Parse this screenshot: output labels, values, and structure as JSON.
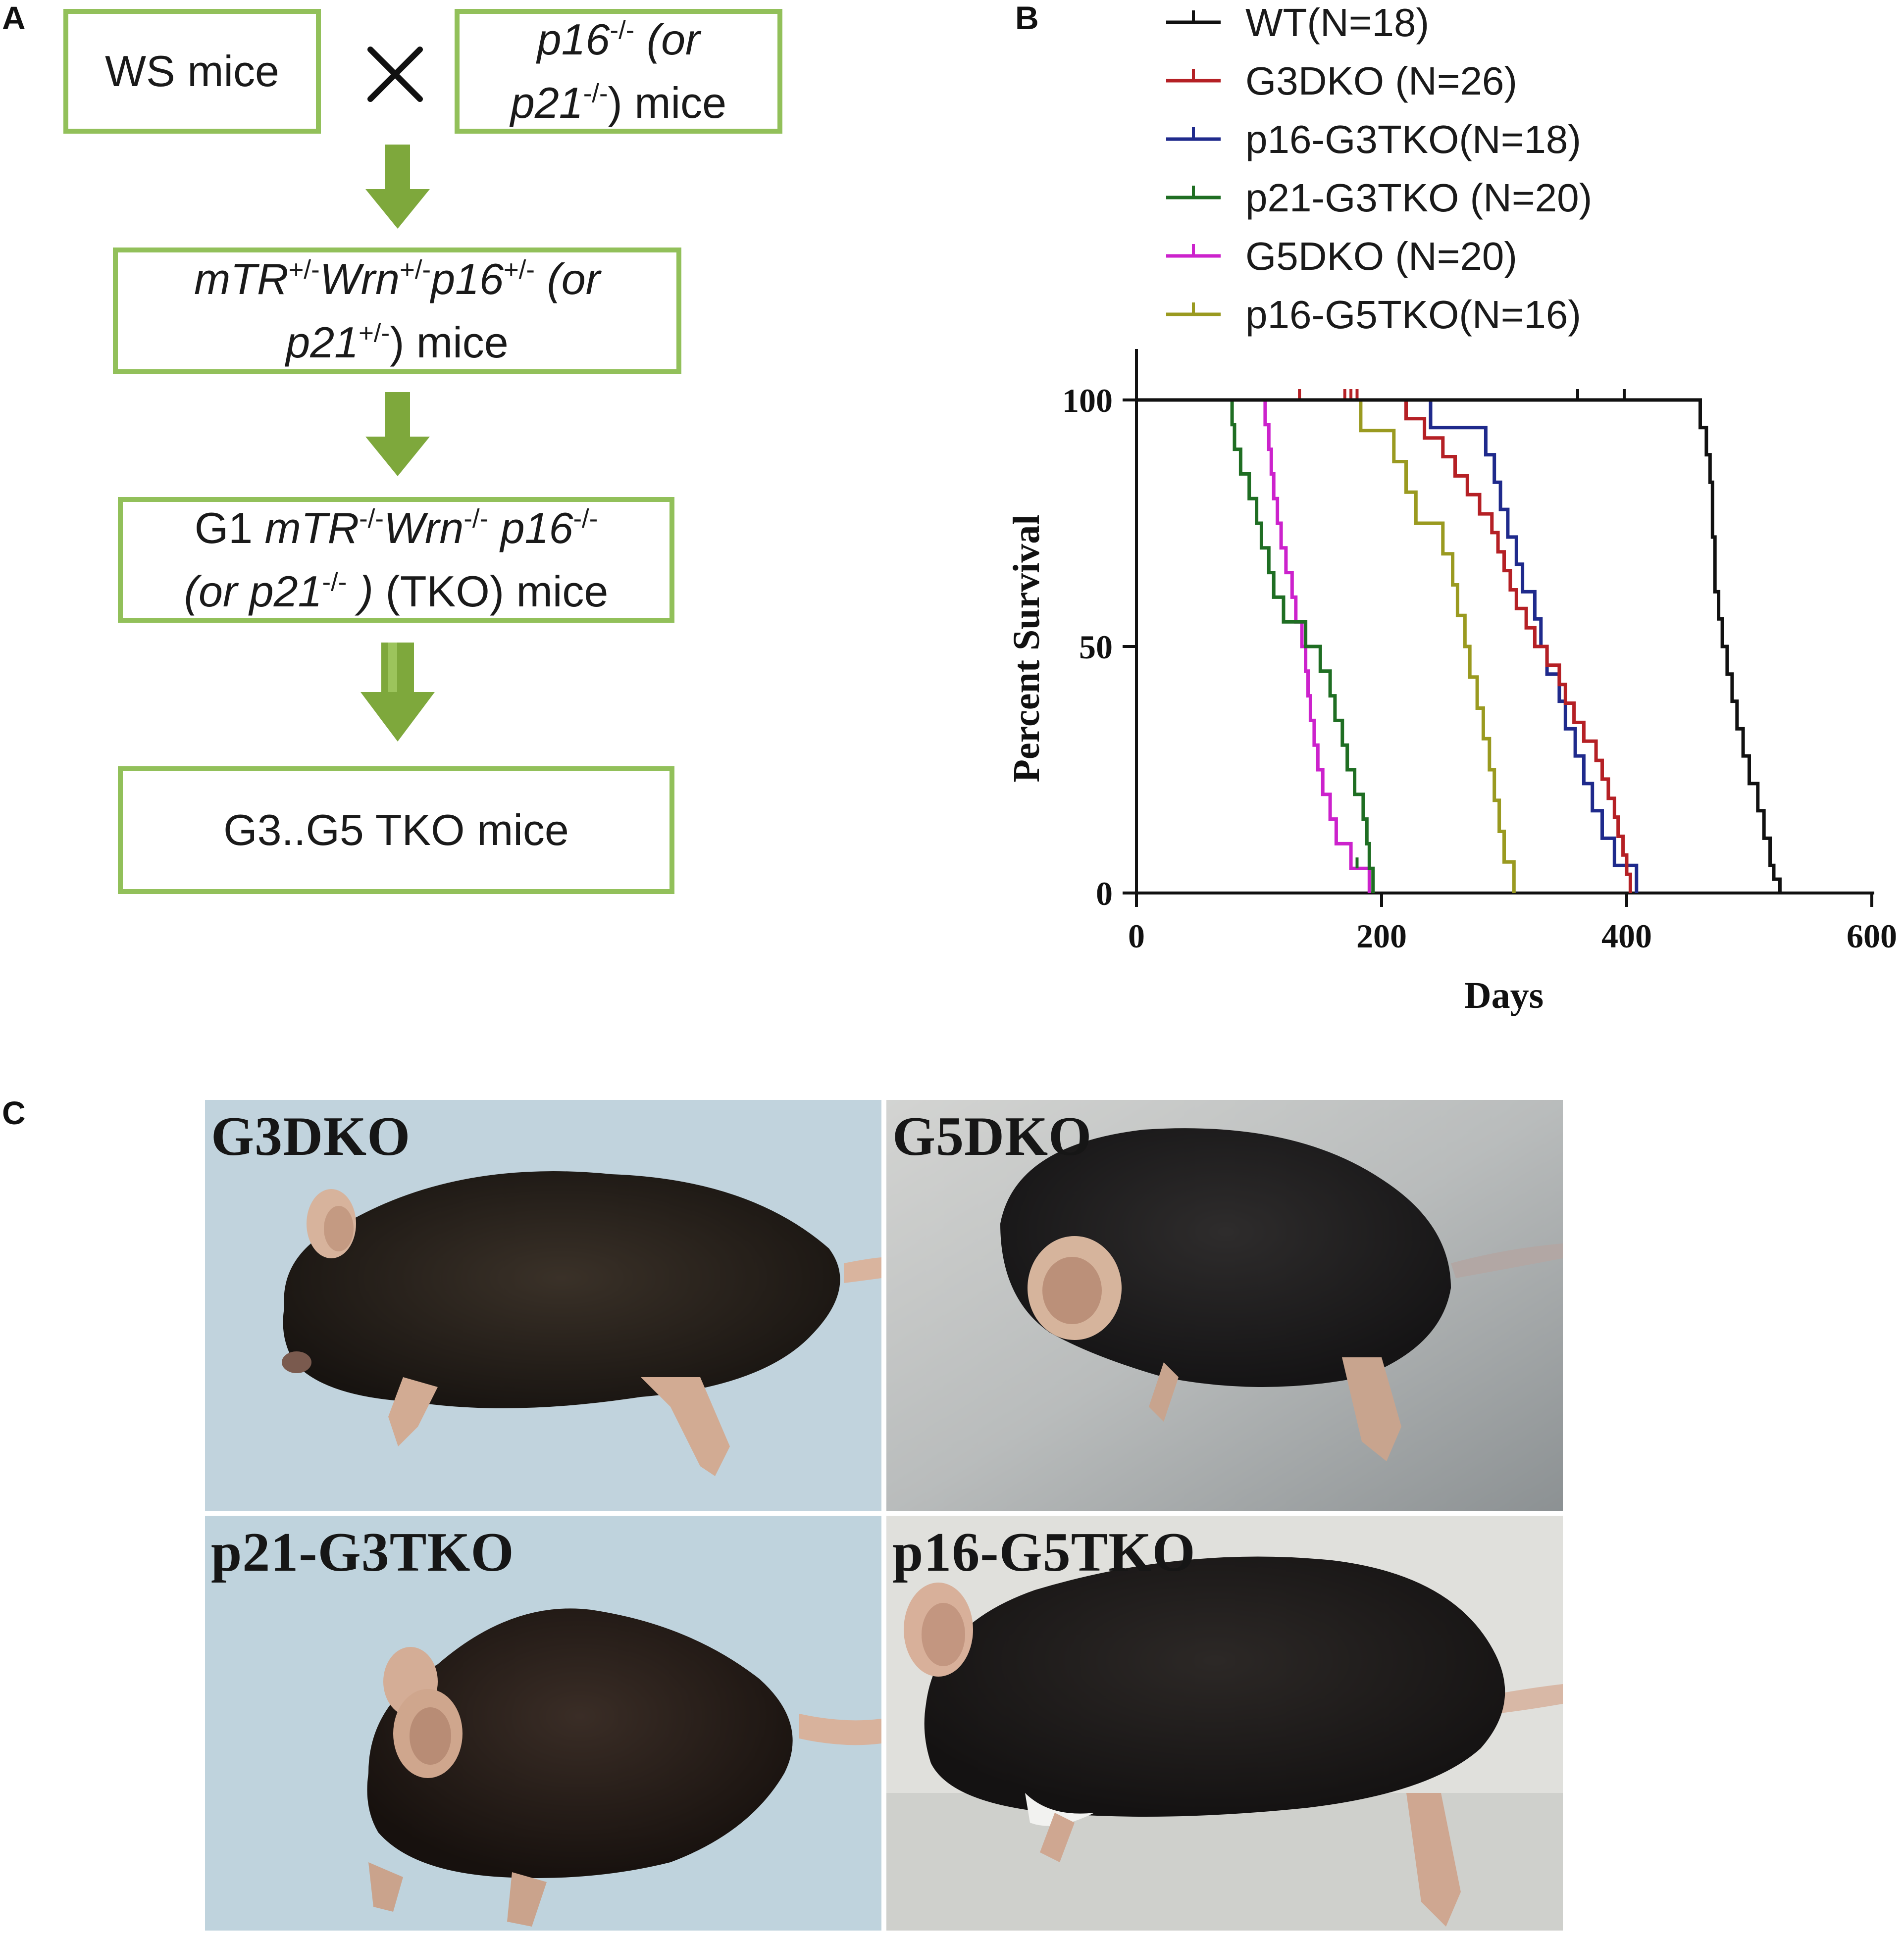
{
  "panels": {
    "a": "A",
    "b": "B",
    "c": "C"
  },
  "flow": {
    "ws_mice": "WS mice",
    "cross_symbol": "×",
    "knockout_line1_gene": "p16",
    "knockout_line1_sup": "-/-",
    "knockout_line1_rest": " (or",
    "knockout_line2_gene": "p21",
    "knockout_line2_sup": "-/-",
    "knockout_line2_rest": ") mice",
    "het_line1_a": "mTR",
    "het_line1_a_sup": "+/-",
    "het_line1_b": "Wrn",
    "het_line1_b_sup": "+/-",
    "het_line1_c": "p16",
    "het_line1_c_sup": "+/-",
    "het_line1_d": " (or",
    "het_line2_gene": "p21",
    "het_line2_sup": "+/-",
    "het_line2_rest": ") mice",
    "g1_prefix": "G1 ",
    "g1_a": "mTR",
    "g1_a_sup": "-/-",
    "g1_b": "Wrn",
    "g1_b_sup": "-/-",
    "g1_c": " p16",
    "g1_c_sup": "-/-",
    "g1_line2_a": "(or p21",
    "g1_line2_sup": "-/-",
    "g1_line2_b": " )",
    "g1_line2_rest": "  (TKO) mice",
    "final": "G3..G5 TKO mice",
    "box_color": "#92c05a",
    "arrow_color": "#7ea83c"
  },
  "chart_data": {
    "type": "line",
    "subtype": "kaplan-meier step",
    "xlabel": "Days",
    "ylabel": "Percent Survival",
    "xlim": [
      0,
      600
    ],
    "ylim": [
      0,
      100
    ],
    "xticks": [
      0,
      200,
      400,
      600
    ],
    "yticks": [
      0,
      50,
      100
    ],
    "legend_position": "top",
    "series": [
      {
        "name": "WT(N=18)",
        "color": "#111111",
        "points": [
          [
            0,
            100
          ],
          [
            460,
            100
          ],
          [
            460,
            94.4
          ],
          [
            465,
            94.4
          ],
          [
            465,
            88.9
          ],
          [
            468,
            88.9
          ],
          [
            468,
            83.3
          ],
          [
            470,
            83.3
          ],
          [
            470,
            72.2
          ],
          [
            472,
            72.2
          ],
          [
            472,
            61.1
          ],
          [
            475,
            61.1
          ],
          [
            475,
            55.6
          ],
          [
            478,
            55.6
          ],
          [
            478,
            50
          ],
          [
            482,
            50
          ],
          [
            482,
            44.4
          ],
          [
            486,
            44.4
          ],
          [
            486,
            38.9
          ],
          [
            490,
            38.9
          ],
          [
            490,
            33.3
          ],
          [
            495,
            33.3
          ],
          [
            495,
            27.8
          ],
          [
            500,
            27.8
          ],
          [
            500,
            22.2
          ],
          [
            507,
            22.2
          ],
          [
            507,
            16.7
          ],
          [
            512,
            16.7
          ],
          [
            512,
            11.1
          ],
          [
            517,
            11.1
          ],
          [
            517,
            5.6
          ],
          [
            520,
            5.6
          ],
          [
            520,
            2.8
          ],
          [
            525,
            2.8
          ],
          [
            525,
            0
          ]
        ],
        "censor": [
          [
            360,
            100
          ],
          [
            398,
            100
          ]
        ]
      },
      {
        "name": "G3DKO (N=26)",
        "color": "#b52025",
        "points": [
          [
            0,
            100
          ],
          [
            220,
            100
          ],
          [
            220,
            96.2
          ],
          [
            235,
            96.2
          ],
          [
            235,
            92.3
          ],
          [
            250,
            92.3
          ],
          [
            250,
            88.5
          ],
          [
            260,
            88.5
          ],
          [
            260,
            84.6
          ],
          [
            270,
            84.6
          ],
          [
            270,
            80.8
          ],
          [
            280,
            80.8
          ],
          [
            280,
            76.9
          ],
          [
            290,
            76.9
          ],
          [
            290,
            73.1
          ],
          [
            295,
            73.1
          ],
          [
            295,
            69.2
          ],
          [
            300,
            69.2
          ],
          [
            300,
            65.4
          ],
          [
            305,
            65.4
          ],
          [
            305,
            61.5
          ],
          [
            310,
            61.5
          ],
          [
            310,
            57.7
          ],
          [
            318,
            57.7
          ],
          [
            318,
            53.8
          ],
          [
            325,
            53.8
          ],
          [
            325,
            50
          ],
          [
            335,
            50
          ],
          [
            335,
            46.2
          ],
          [
            345,
            46.2
          ],
          [
            345,
            42.3
          ],
          [
            350,
            42.3
          ],
          [
            350,
            38.5
          ],
          [
            357,
            38.5
          ],
          [
            357,
            34.6
          ],
          [
            365,
            34.6
          ],
          [
            365,
            30.8
          ],
          [
            375,
            30.8
          ],
          [
            375,
            26.9
          ],
          [
            380,
            26.9
          ],
          [
            380,
            23.1
          ],
          [
            385,
            23.1
          ],
          [
            385,
            19.2
          ],
          [
            390,
            19.2
          ],
          [
            390,
            15.4
          ],
          [
            393,
            15.4
          ],
          [
            393,
            11.5
          ],
          [
            397,
            11.5
          ],
          [
            397,
            7.7
          ],
          [
            400,
            7.7
          ],
          [
            400,
            3.8
          ],
          [
            403,
            3.8
          ],
          [
            403,
            0
          ]
        ],
        "censor": [
          [
            133,
            100
          ],
          [
            170,
            100
          ],
          [
            175,
            100
          ],
          [
            180,
            100
          ]
        ]
      },
      {
        "name": "p16-G3TKO(N=18)",
        "color": "#1f2a8c",
        "points": [
          [
            0,
            100
          ],
          [
            240,
            100
          ],
          [
            240,
            94.4
          ],
          [
            285,
            94.4
          ],
          [
            285,
            88.9
          ],
          [
            292,
            88.9
          ],
          [
            292,
            83.3
          ],
          [
            297,
            83.3
          ],
          [
            297,
            77.8
          ],
          [
            303,
            77.8
          ],
          [
            303,
            72.2
          ],
          [
            310,
            72.2
          ],
          [
            310,
            66.7
          ],
          [
            315,
            66.7
          ],
          [
            315,
            61.1
          ],
          [
            325,
            61.1
          ],
          [
            325,
            55.6
          ],
          [
            330,
            55.6
          ],
          [
            330,
            50
          ],
          [
            335,
            50
          ],
          [
            335,
            44.4
          ],
          [
            345,
            44.4
          ],
          [
            345,
            38.9
          ],
          [
            350,
            38.9
          ],
          [
            350,
            33.3
          ],
          [
            358,
            33.3
          ],
          [
            358,
            27.8
          ],
          [
            365,
            27.8
          ],
          [
            365,
            22.2
          ],
          [
            372,
            22.2
          ],
          [
            372,
            16.7
          ],
          [
            380,
            16.7
          ],
          [
            380,
            11.1
          ],
          [
            390,
            11.1
          ],
          [
            390,
            5.6
          ],
          [
            408,
            5.6
          ],
          [
            408,
            0
          ]
        ],
        "censor": []
      },
      {
        "name": "p21-G3TKO (N=20)",
        "color": "#1f6e23",
        "points": [
          [
            0,
            100
          ],
          [
            78,
            100
          ],
          [
            78,
            95
          ],
          [
            80,
            95
          ],
          [
            80,
            90
          ],
          [
            85,
            90
          ],
          [
            85,
            85
          ],
          [
            92,
            85
          ],
          [
            92,
            80
          ],
          [
            98,
            80
          ],
          [
            98,
            75
          ],
          [
            102,
            75
          ],
          [
            102,
            70
          ],
          [
            108,
            70
          ],
          [
            108,
            65
          ],
          [
            112,
            65
          ],
          [
            112,
            60
          ],
          [
            120,
            60
          ],
          [
            120,
            55
          ],
          [
            138,
            55
          ],
          [
            138,
            50
          ],
          [
            150,
            50
          ],
          [
            150,
            45
          ],
          [
            158,
            45
          ],
          [
            158,
            40
          ],
          [
            162,
            40
          ],
          [
            162,
            35
          ],
          [
            168,
            35
          ],
          [
            168,
            30
          ],
          [
            172,
            30
          ],
          [
            172,
            25
          ],
          [
            178,
            25
          ],
          [
            178,
            20
          ],
          [
            185,
            20
          ],
          [
            185,
            15
          ],
          [
            188,
            15
          ],
          [
            188,
            10
          ],
          [
            190,
            10
          ],
          [
            190,
            5
          ],
          [
            193,
            5
          ],
          [
            193,
            0
          ]
        ],
        "censor": [
          [
            180,
            5
          ]
        ]
      },
      {
        "name": "G5DKO (N=20)",
        "color": "#cc22cc",
        "points": [
          [
            0,
            100
          ],
          [
            105,
            100
          ],
          [
            105,
            95
          ],
          [
            108,
            95
          ],
          [
            108,
            90
          ],
          [
            110,
            90
          ],
          [
            110,
            85
          ],
          [
            112,
            85
          ],
          [
            112,
            80
          ],
          [
            115,
            80
          ],
          [
            115,
            75
          ],
          [
            118,
            75
          ],
          [
            118,
            70
          ],
          [
            122,
            70
          ],
          [
            122,
            65
          ],
          [
            127,
            65
          ],
          [
            127,
            60
          ],
          [
            130,
            60
          ],
          [
            130,
            55
          ],
          [
            135,
            55
          ],
          [
            135,
            50
          ],
          [
            138,
            50
          ],
          [
            138,
            45
          ],
          [
            140,
            45
          ],
          [
            140,
            40
          ],
          [
            142,
            40
          ],
          [
            142,
            35
          ],
          [
            145,
            35
          ],
          [
            145,
            30
          ],
          [
            148,
            30
          ],
          [
            148,
            25
          ],
          [
            152,
            25
          ],
          [
            152,
            20
          ],
          [
            158,
            20
          ],
          [
            158,
            15
          ],
          [
            163,
            15
          ],
          [
            163,
            10
          ],
          [
            175,
            10
          ],
          [
            175,
            5
          ],
          [
            190,
            5
          ],
          [
            190,
            0
          ]
        ],
        "censor": []
      },
      {
        "name": "p16-G5TKO(N=16)",
        "color": "#9a9a20",
        "points": [
          [
            0,
            100
          ],
          [
            183,
            100
          ],
          [
            183,
            93.8
          ],
          [
            210,
            93.8
          ],
          [
            210,
            87.5
          ],
          [
            220,
            87.5
          ],
          [
            220,
            81.3
          ],
          [
            228,
            81.3
          ],
          [
            228,
            75
          ],
          [
            250,
            75
          ],
          [
            250,
            68.8
          ],
          [
            258,
            68.8
          ],
          [
            258,
            62.5
          ],
          [
            262,
            62.5
          ],
          [
            262,
            56.3
          ],
          [
            268,
            56.3
          ],
          [
            268,
            50
          ],
          [
            272,
            50
          ],
          [
            272,
            43.8
          ],
          [
            278,
            43.8
          ],
          [
            278,
            37.5
          ],
          [
            283,
            37.5
          ],
          [
            283,
            31.3
          ],
          [
            288,
            31.3
          ],
          [
            288,
            25
          ],
          [
            292,
            25
          ],
          [
            292,
            18.8
          ],
          [
            296,
            18.8
          ],
          [
            296,
            12.5
          ],
          [
            300,
            12.5
          ],
          [
            300,
            6.3
          ],
          [
            308,
            6.3
          ],
          [
            308,
            0
          ]
        ],
        "censor": []
      }
    ]
  },
  "photos": [
    {
      "label": "G3DKO"
    },
    {
      "label": "G5DKO"
    },
    {
      "label": "p21-G3TKO"
    },
    {
      "label": "p16-G5TKO"
    }
  ]
}
